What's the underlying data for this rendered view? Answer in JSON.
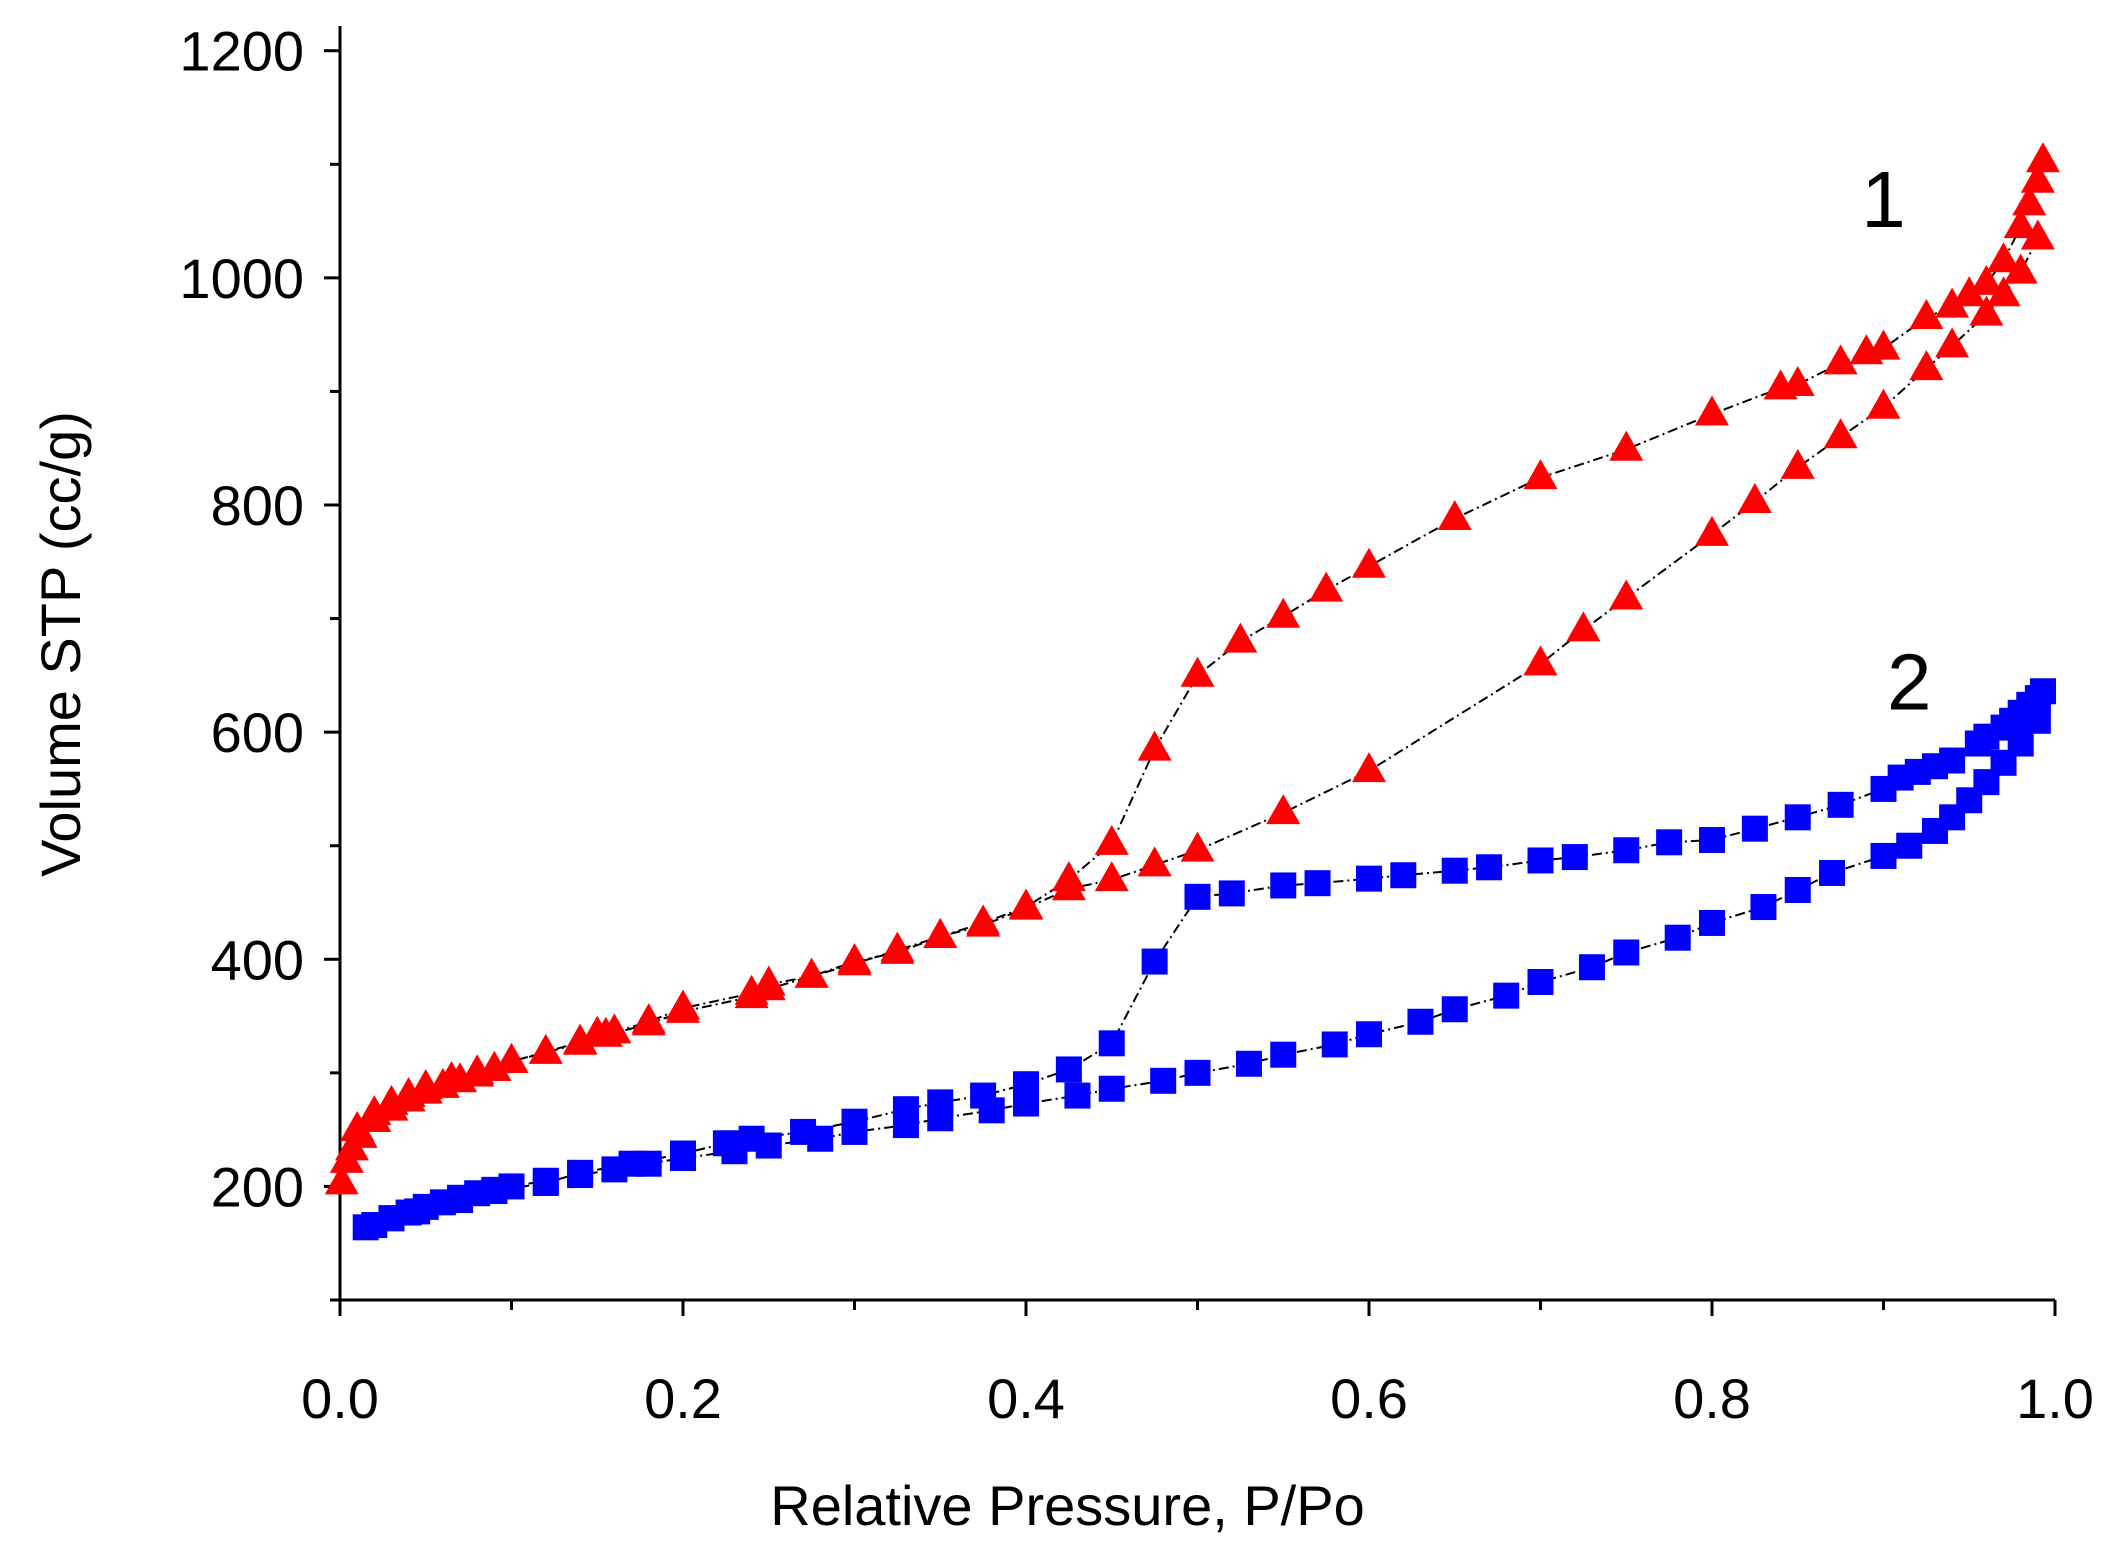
{
  "chart_data": {
    "type": "scatter",
    "xlabel": "Relative Pressure, P/Po",
    "ylabel": "Volume STP (cc/g)",
    "xlim": [
      0.0,
      1.0
    ],
    "ylim": [
      100,
      1220
    ],
    "x_ticks": [
      "0.0",
      "0.2",
      "0.4",
      "0.6",
      "0.8",
      "1.0"
    ],
    "y_ticks": [
      "200",
      "400",
      "600",
      "800",
      "1000",
      "1200"
    ],
    "grid": false,
    "series_labels": [
      {
        "text": "1",
        "x": 0.9,
        "y": 1045
      },
      {
        "text": "2",
        "x": 0.915,
        "y": 620
      }
    ],
    "series": [
      {
        "name": "",
        "color": "#ff0000",
        "marker": "triangle",
        "line_color": "#000000",
        "branches": [
          {
            "branch": "adsorption",
            "points": [
              [
                0.001,
                203
              ],
              [
                0.004,
                222
              ],
              [
                0.007,
                233
              ],
              [
                0.012,
                244
              ],
              [
                0.02,
                258
              ],
              [
                0.03,
                268
              ],
              [
                0.04,
                276
              ],
              [
                0.05,
                283
              ],
              [
                0.06,
                288
              ],
              [
                0.07,
                293
              ],
              [
                0.08,
                298
              ],
              [
                0.09,
                303
              ],
              [
                0.1,
                310
              ],
              [
                0.12,
                318
              ],
              [
                0.14,
                326
              ],
              [
                0.155,
                333
              ],
              [
                0.18,
                343
              ],
              [
                0.2,
                354
              ],
              [
                0.24,
                367
              ],
              [
                0.25,
                374
              ],
              [
                0.275,
                385
              ],
              [
                0.3,
                398
              ],
              [
                0.325,
                406
              ],
              [
                0.35,
                420
              ],
              [
                0.375,
                430
              ],
              [
                0.4,
                445
              ],
              [
                0.425,
                462
              ],
              [
                0.45,
                470
              ],
              [
                0.475,
                483
              ],
              [
                0.5,
                496
              ],
              [
                0.55,
                529
              ],
              [
                0.6,
                566
              ],
              [
                0.7,
                660
              ],
              [
                0.725,
                690
              ],
              [
                0.75,
                718
              ],
              [
                0.8,
                774
              ],
              [
                0.825,
                803
              ],
              [
                0.85,
                833
              ],
              [
                0.875,
                860
              ],
              [
                0.9,
                886
              ],
              [
                0.925,
                920
              ],
              [
                0.94,
                940
              ],
              [
                0.96,
                968
              ],
              [
                0.97,
                985
              ],
              [
                0.98,
                1005
              ],
              [
                0.99,
                1035
              ]
            ]
          },
          {
            "branch": "desorption",
            "points": [
              [
                0.993,
                1103
              ],
              [
                0.99,
                1085
              ],
              [
                0.985,
                1065
              ],
              [
                0.98,
                1045
              ],
              [
                0.97,
                1015
              ],
              [
                0.96,
                995
              ],
              [
                0.95,
                985
              ],
              [
                0.94,
                975
              ],
              [
                0.925,
                965
              ],
              [
                0.9,
                938
              ],
              [
                0.89,
                934
              ],
              [
                0.875,
                925
              ],
              [
                0.85,
                906
              ],
              [
                0.84,
                903
              ],
              [
                0.8,
                880
              ],
              [
                0.75,
                849
              ],
              [
                0.7,
                824
              ],
              [
                0.65,
                788
              ],
              [
                0.6,
                746
              ],
              [
                0.575,
                725
              ],
              [
                0.55,
                702
              ],
              [
                0.525,
                680
              ],
              [
                0.5,
                650
              ],
              [
                0.475,
                585
              ],
              [
                0.45,
                502
              ],
              [
                0.425,
                470
              ],
              [
                0.4,
                446
              ],
              [
                0.375,
                432
              ],
              [
                0.35,
                420
              ],
              [
                0.325,
                408
              ],
              [
                0.3,
                396
              ],
              [
                0.275,
                385
              ],
              [
                0.25,
                378
              ],
              [
                0.24,
                370
              ],
              [
                0.2,
                357
              ],
              [
                0.18,
                345
              ],
              [
                0.16,
                336
              ],
              [
                0.15,
                334
              ],
              [
                0.14,
                327
              ],
              [
                0.1,
                310
              ],
              [
                0.09,
                303
              ],
              [
                0.08,
                300
              ],
              [
                0.065,
                294
              ],
              [
                0.05,
                287
              ],
              [
                0.04,
                280
              ],
              [
                0.03,
                273
              ],
              [
                0.02,
                264
              ],
              [
                0.01,
                250
              ]
            ]
          }
        ]
      },
      {
        "name": "",
        "color": "#0000ff",
        "marker": "square",
        "line_color": "#000000",
        "branches": [
          {
            "branch": "adsorption",
            "points": [
              [
                0.02,
                166
              ],
              [
                0.03,
                172
              ],
              [
                0.04,
                177
              ],
              [
                0.05,
                182
              ],
              [
                0.06,
                186
              ],
              [
                0.07,
                190
              ],
              [
                0.08,
                194
              ],
              [
                0.09,
                197
              ],
              [
                0.1,
                200
              ],
              [
                0.12,
                205
              ],
              [
                0.14,
                210
              ],
              [
                0.16,
                215
              ],
              [
                0.18,
                220
              ],
              [
                0.2,
                225
              ],
              [
                0.23,
                231
              ],
              [
                0.25,
                236
              ],
              [
                0.28,
                242
              ],
              [
                0.3,
                248
              ],
              [
                0.33,
                254
              ],
              [
                0.35,
                260
              ],
              [
                0.38,
                267
              ],
              [
                0.4,
                273
              ],
              [
                0.43,
                280
              ],
              [
                0.45,
                286
              ],
              [
                0.48,
                293
              ],
              [
                0.5,
                300
              ],
              [
                0.53,
                308
              ],
              [
                0.55,
                316
              ],
              [
                0.58,
                325
              ],
              [
                0.6,
                334
              ],
              [
                0.63,
                345
              ],
              [
                0.65,
                356
              ],
              [
                0.68,
                368
              ],
              [
                0.7,
                380
              ],
              [
                0.73,
                393
              ],
              [
                0.75,
                406
              ],
              [
                0.78,
                419
              ],
              [
                0.8,
                432
              ],
              [
                0.83,
                446
              ],
              [
                0.85,
                461
              ],
              [
                0.87,
                476
              ],
              [
                0.9,
                491
              ],
              [
                0.915,
                500
              ],
              [
                0.93,
                513
              ],
              [
                0.94,
                525
              ],
              [
                0.95,
                540
              ],
              [
                0.96,
                556
              ],
              [
                0.97,
                573
              ],
              [
                0.98,
                590
              ],
              [
                0.99,
                610
              ]
            ]
          },
          {
            "branch": "desorption",
            "points": [
              [
                0.993,
                636
              ],
              [
                0.99,
                630
              ],
              [
                0.985,
                624
              ],
              [
                0.98,
                617
              ],
              [
                0.975,
                610
              ],
              [
                0.97,
                604
              ],
              [
                0.96,
                596
              ],
              [
                0.955,
                590
              ],
              [
                0.94,
                575
              ],
              [
                0.93,
                570
              ],
              [
                0.92,
                565
              ],
              [
                0.91,
                560
              ],
              [
                0.9,
                550
              ],
              [
                0.875,
                536
              ],
              [
                0.85,
                525
              ],
              [
                0.825,
                515
              ],
              [
                0.8,
                505
              ],
              [
                0.775,
                503
              ],
              [
                0.75,
                496
              ],
              [
                0.72,
                490
              ],
              [
                0.7,
                487
              ],
              [
                0.67,
                481
              ],
              [
                0.65,
                478
              ],
              [
                0.62,
                474
              ],
              [
                0.6,
                471
              ],
              [
                0.57,
                467
              ],
              [
                0.55,
                465
              ],
              [
                0.52,
                458
              ],
              [
                0.5,
                455
              ],
              [
                0.475,
                398
              ],
              [
                0.45,
                326
              ],
              [
                0.425,
                303
              ],
              [
                0.4,
                290
              ],
              [
                0.375,
                280
              ],
              [
                0.35,
                274
              ],
              [
                0.33,
                268
              ],
              [
                0.3,
                257
              ],
              [
                0.27,
                248
              ],
              [
                0.24,
                242
              ],
              [
                0.225,
                238
              ],
              [
                0.2,
                229
              ],
              [
                0.17,
                220
              ],
              [
                0.14,
                212
              ],
              [
                0.12,
                203
              ],
              [
                0.09,
                196
              ],
              [
                0.07,
                188
              ],
              [
                0.045,
                178
              ],
              [
                0.03,
                172
              ],
              [
                0.015,
                164
              ]
            ]
          }
        ]
      }
    ]
  }
}
